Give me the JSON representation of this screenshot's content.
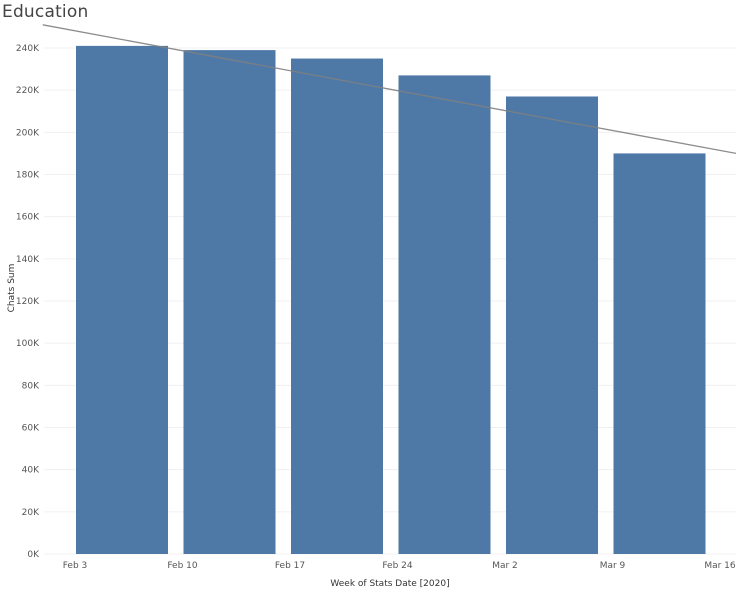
{
  "chart_data": {
    "type": "bar",
    "title": "Education",
    "xlabel": "Week of Stats Date [2020]",
    "ylabel": "Chats Sum",
    "x_ticks": [
      "Feb 3",
      "Feb 10",
      "Feb 17",
      "Feb 24",
      "Mar 2",
      "Mar 9",
      "Mar 16"
    ],
    "y_ticks": [
      "0K",
      "20K",
      "40K",
      "60K",
      "80K",
      "100K",
      "120K",
      "140K",
      "160K",
      "180K",
      "200K",
      "220K",
      "240K"
    ],
    "categories": [
      "Feb 3",
      "Feb 10",
      "Feb 17",
      "Feb 24",
      "Mar 2",
      "Mar 9"
    ],
    "values": [
      241000,
      239000,
      235000,
      227000,
      217000,
      190000
    ],
    "ylim": [
      0,
      250000
    ],
    "trend_line": {
      "start": [
        -0.3,
        251000
      ],
      "end": [
        6.15,
        190000
      ]
    },
    "colors": {
      "bar": "#4e79a7",
      "trend": "#7f7f7f",
      "grid": "#f0f0f0"
    },
    "grid": true,
    "legend": "none"
  }
}
